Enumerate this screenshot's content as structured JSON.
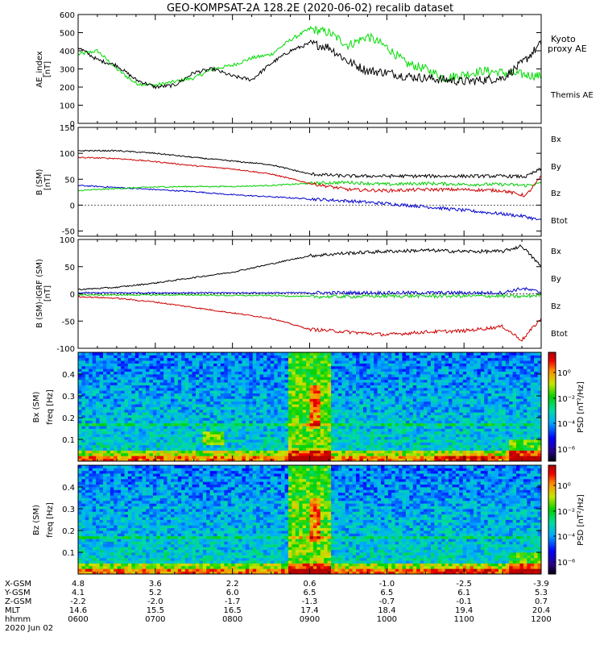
{
  "title": "GEO-KOMPSAT-2A 128.2E (2020-06-02) recalib dataset",
  "panels": {
    "ae": {
      "ylabel": "AE_index",
      "unit": "[nT]",
      "ticks": [
        "0",
        "100",
        "200",
        "300",
        "400",
        "500",
        "600"
      ]
    },
    "bsm": {
      "ylabel": "B (SM)",
      "unit": "[nT]",
      "ticks": [
        "-50",
        "0",
        "50",
        "100",
        "150"
      ]
    },
    "bres": {
      "ylabel": "B (SM)-IGRF (SM)",
      "unit": "[nT]",
      "ticks": [
        "-100",
        "-50",
        "0",
        "50",
        "100"
      ]
    },
    "specx": {
      "ylabel": "Bx (SM)",
      "sublabel": "freq [Hz]",
      "ticks": [
        "0.1",
        "0.2",
        "0.3",
        "0.4"
      ],
      "cbar_label": "PSD [nT²/Hz]",
      "cbar_ticks": [
        "10⁰",
        "10⁻²",
        "10⁻⁴",
        "10⁻⁶"
      ]
    },
    "specz": {
      "ylabel": "Bz (SM)",
      "sublabel": "freq [Hz]",
      "ticks": [
        "0.1",
        "0.2",
        "0.3",
        "0.4"
      ],
      "cbar_label": "PSD [nT²/Hz]",
      "cbar_ticks": [
        "10⁰",
        "10⁻²",
        "10⁻⁴",
        "10⁻⁶"
      ]
    }
  },
  "legends": {
    "ae": [
      {
        "name": "Kyoto",
        "color": "#00dd00"
      },
      {
        "name": "proxy AE",
        "color": "#00dd00"
      },
      {
        "name": "Themis AE",
        "color": "#000000"
      }
    ],
    "bsm": [
      {
        "name": "Bx",
        "color": "#0000cc"
      },
      {
        "name": "By",
        "color": "#00cc00"
      },
      {
        "name": "Bz",
        "color": "#cc0000"
      },
      {
        "name": "Btot",
        "color": "#000000"
      }
    ],
    "bres": [
      {
        "name": "Bx",
        "color": "#0000cc"
      },
      {
        "name": "By",
        "color": "#00cc00"
      },
      {
        "name": "Bz",
        "color": "#cc0000"
      },
      {
        "name": "Btot",
        "color": "#000000"
      }
    ]
  },
  "ephemeris": {
    "row_labels": [
      "X-GSM",
      "Y-GSM",
      "Z-GSM",
      "MLT",
      "hhmm",
      "2020 Jun 02"
    ],
    "columns": [
      {
        "x": "4.8",
        "y": "4.1",
        "z": "-2.2",
        "mlt": "14.6",
        "hhmm": "0600"
      },
      {
        "x": "3.6",
        "y": "5.2",
        "z": "-2.0",
        "mlt": "15.5",
        "hhmm": "0700"
      },
      {
        "x": "2.2",
        "y": "6.0",
        "z": "-1.7",
        "mlt": "16.5",
        "hhmm": "0800"
      },
      {
        "x": "0.6",
        "y": "6.5",
        "z": "-1.3",
        "mlt": "17.4",
        "hhmm": "0900"
      },
      {
        "x": "-1.0",
        "y": "6.5",
        "z": "-0.7",
        "mlt": "18.4",
        "hhmm": "1000"
      },
      {
        "x": "-2.5",
        "y": "6.1",
        "z": "-0.1",
        "mlt": "19.4",
        "hhmm": "1100"
      },
      {
        "x": "-3.9",
        "y": "5.3",
        "z": "0.7",
        "mlt": "20.4",
        "hhmm": "1200"
      }
    ]
  },
  "chart_data": [
    {
      "type": "line",
      "ylabel": "AE_index [nT]",
      "ylim": [
        0,
        600
      ],
      "x": [
        6.0,
        6.25,
        6.5,
        6.75,
        7.0,
        7.25,
        7.5,
        7.75,
        8.0,
        8.25,
        8.5,
        8.75,
        9.0,
        9.25,
        9.5,
        9.75,
        10.0,
        10.25,
        10.5,
        10.75,
        11.0,
        11.25,
        11.5,
        11.75,
        12.0
      ],
      "series": [
        {
          "name": "Kyoto proxy AE",
          "color": "#00dd00",
          "values": [
            380,
            400,
            300,
            220,
            210,
            230,
            250,
            300,
            320,
            360,
            380,
            460,
            520,
            500,
            430,
            480,
            420,
            330,
            300,
            250,
            270,
            290,
            280,
            270,
            260
          ]
        },
        {
          "name": "Themis AE",
          "color": "#000000",
          "values": [
            420,
            350,
            320,
            240,
            200,
            210,
            280,
            300,
            260,
            240,
            330,
            400,
            440,
            420,
            340,
            290,
            280,
            260,
            250,
            240,
            230,
            240,
            250,
            330,
            440
          ]
        }
      ]
    },
    {
      "type": "line",
      "ylabel": "B (SM) [nT]",
      "ylim": [
        -60,
        150
      ],
      "x": [
        6.0,
        6.5,
        7.0,
        7.5,
        8.0,
        8.5,
        9.0,
        9.5,
        10.0,
        10.5,
        11.0,
        11.5,
        11.8,
        12.0
      ],
      "series": [
        {
          "name": "Bx",
          "color": "#0000cc",
          "values": [
            38,
            34,
            30,
            26,
            20,
            16,
            12,
            8,
            3,
            -3,
            -10,
            -17,
            -22,
            -30
          ]
        },
        {
          "name": "By",
          "color": "#00cc00",
          "values": [
            28,
            32,
            35,
            36,
            36,
            38,
            42,
            44,
            40,
            42,
            40,
            40,
            38,
            42
          ]
        },
        {
          "name": "Bz",
          "color": "#cc0000",
          "values": [
            92,
            90,
            84,
            76,
            70,
            60,
            42,
            30,
            28,
            30,
            30,
            28,
            18,
            55
          ]
        },
        {
          "name": "Btot",
          "color": "#000000",
          "values": [
            105,
            105,
            100,
            92,
            85,
            78,
            60,
            56,
            56,
            56,
            56,
            56,
            55,
            70
          ]
        }
      ]
    },
    {
      "type": "line",
      "ylabel": "B (SM)-IGRF (SM) [nT]",
      "ylim": [
        -100,
        100
      ],
      "x": [
        6.0,
        6.5,
        7.0,
        7.5,
        8.0,
        8.5,
        9.0,
        9.5,
        10.0,
        10.5,
        11.0,
        11.5,
        11.75,
        12.0
      ],
      "series": [
        {
          "name": "Bx",
          "color": "#0000cc",
          "values": [
            2,
            2,
            2,
            2,
            2,
            2,
            2,
            2,
            2,
            2,
            2,
            2,
            10,
            3
          ]
        },
        {
          "name": "By",
          "color": "#00cc00",
          "values": [
            -2,
            -2,
            -2,
            -2,
            -3,
            -3,
            -5,
            -5,
            -4,
            -4,
            -4,
            -4,
            -5,
            -2
          ]
        },
        {
          "name": "Bz",
          "color": "#cc0000",
          "values": [
            -5,
            -8,
            -15,
            -25,
            -35,
            -45,
            -65,
            -70,
            -75,
            -70,
            -68,
            -60,
            -85,
            -45
          ]
        },
        {
          "name": "Btot",
          "color": "#000000",
          "values": [
            8,
            12,
            20,
            30,
            40,
            55,
            70,
            75,
            78,
            80,
            78,
            78,
            88,
            50
          ]
        }
      ]
    },
    {
      "type": "heatmap",
      "ylabel": "Bx (SM) freq [Hz]",
      "ylim": [
        0,
        0.5
      ],
      "xlim": [
        6.0,
        12.0
      ],
      "colorbar": {
        "label": "PSD [nT²/Hz]",
        "ticks": [
          "10⁰",
          "10⁻²",
          "10⁻⁴",
          "10⁻⁶"
        ]
      }
    },
    {
      "type": "heatmap",
      "ylabel": "Bz (SM) freq [Hz]",
      "ylim": [
        0,
        0.5
      ],
      "xlim": [
        6.0,
        12.0
      ],
      "colorbar": {
        "label": "PSD [nT²/Hz]",
        "ticks": [
          "10⁰",
          "10⁻²",
          "10⁻⁴",
          "10⁻⁶"
        ]
      }
    }
  ]
}
